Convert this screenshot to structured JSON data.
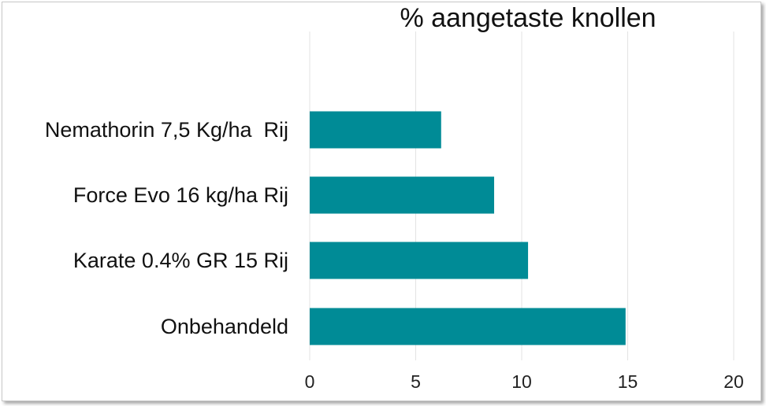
{
  "chart_data": {
    "type": "bar",
    "orientation": "horizontal",
    "title": "% aangetaste knollen",
    "categories": [
      "Nemathorin 7,5 Kg/ha  Rij",
      "Force Evo 16 kg/ha Rij",
      "Karate 0.4% GR 15 Rij",
      "Onbehandeld"
    ],
    "values": [
      6.2,
      8.7,
      10.3,
      14.9
    ],
    "xlim": [
      0,
      20
    ],
    "xticks": [
      "0",
      "5",
      "10",
      "15",
      "20"
    ],
    "grid": true,
    "legend": "none",
    "bar_color": "#008b96"
  }
}
